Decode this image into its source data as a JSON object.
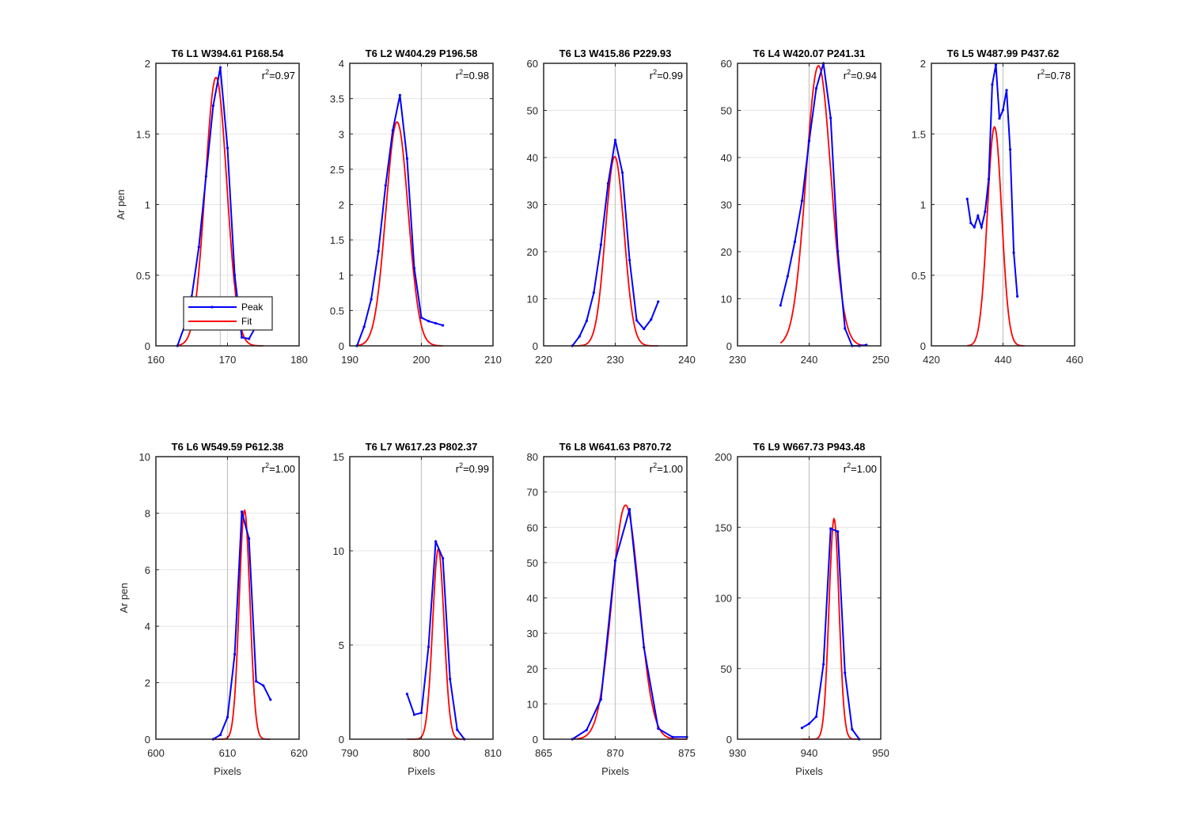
{
  "figure": {
    "ylabel": "Ar pen",
    "xlabel": "Pixels",
    "legend": {
      "entries": [
        "Peak",
        "Fit"
      ],
      "placement": "bottom-left"
    },
    "colors": {
      "peak": "#0000ff",
      "fit": "#ff0000",
      "marker_line": "#c8c8c8",
      "grid": "#e6e6e6"
    }
  },
  "chart_data": [
    {
      "type": "line",
      "title": "T6 L1 W394.61 P168.54",
      "r2_prefix": "r",
      "r2_sup": "2",
      "r2_value": "=0.97",
      "xlim": [
        160,
        180
      ],
      "ylim": [
        0,
        2
      ],
      "xticks": [
        160,
        170,
        180
      ],
      "yticks": [
        0,
        0.5,
        1,
        1.5,
        2
      ],
      "marker_x": 169,
      "peak": {
        "x": [
          163,
          164,
          165,
          166,
          167,
          168,
          169,
          170,
          171,
          172,
          173,
          174
        ],
        "y": [
          0.0,
          0.14,
          0.35,
          0.7,
          1.2,
          1.7,
          1.97,
          1.4,
          0.5,
          0.06,
          0.05,
          0.14
        ]
      },
      "fit": {
        "amplitude": 1.9,
        "center": 168.4,
        "sigma": 1.5,
        "range": [
          163,
          175
        ]
      }
    },
    {
      "type": "line",
      "title": "T6 L2 W404.29 P196.58",
      "r2_prefix": "r",
      "r2_sup": "2",
      "r2_value": "=0.98",
      "xlim": [
        190,
        210
      ],
      "ylim": [
        0,
        4
      ],
      "xticks": [
        190,
        200,
        210
      ],
      "yticks": [
        0,
        0.5,
        1,
        1.5,
        2,
        2.5,
        3,
        3.5,
        4
      ],
      "marker_x": 200,
      "peak": {
        "x": [
          191,
          192,
          193,
          194,
          195,
          196,
          197,
          198,
          199,
          200,
          201,
          202,
          203
        ],
        "y": [
          0.0,
          0.27,
          0.66,
          1.34,
          2.27,
          3.05,
          3.55,
          2.65,
          1.1,
          0.4,
          0.35,
          0.32,
          0.29
        ]
      },
      "fit": {
        "amplitude": 3.17,
        "center": 196.6,
        "sigma": 1.55,
        "range": [
          191,
          203
        ]
      }
    },
    {
      "type": "line",
      "title": "T6 L3 W415.86 P229.93",
      "r2_prefix": "r",
      "r2_sup": "2",
      "r2_value": "=0.99",
      "xlim": [
        220,
        240
      ],
      "ylim": [
        0,
        60
      ],
      "xticks": [
        220,
        230,
        240
      ],
      "yticks": [
        0,
        10,
        20,
        30,
        40,
        50,
        60
      ],
      "marker_x": 230,
      "peak": {
        "x": [
          224,
          225,
          226,
          227,
          228,
          229,
          230,
          231,
          232,
          233,
          234,
          235,
          236
        ],
        "y": [
          0.0,
          2.0,
          5.3,
          11.3,
          21.5,
          34.5,
          43.7,
          36.8,
          18.2,
          5.4,
          3.6,
          5.6,
          9.4
        ]
      },
      "fit": {
        "amplitude": 40.2,
        "center": 229.93,
        "sigma": 1.3,
        "range": [
          224,
          236
        ]
      }
    },
    {
      "type": "line",
      "title": "T6 L4 W420.07 P241.31",
      "r2_prefix": "r",
      "r2_sup": "2",
      "r2_value": "=0.94",
      "xlim": [
        230,
        250
      ],
      "ylim": [
        0,
        60
      ],
      "xticks": [
        230,
        240,
        250
      ],
      "yticks": [
        0,
        10,
        20,
        30,
        40,
        50,
        60
      ],
      "marker_x": 240,
      "peak": {
        "x": [
          236,
          237,
          238,
          239,
          240,
          241,
          242,
          243,
          244,
          245,
          246,
          247,
          248
        ],
        "y": [
          8.6,
          14.8,
          22.1,
          30.8,
          43.5,
          54.7,
          60.0,
          48.4,
          20.1,
          3.7,
          0.0,
          0.0,
          0.2
        ]
      },
      "fit": {
        "amplitude": 59.5,
        "center": 241.31,
        "sigma": 1.75,
        "range": [
          236,
          248
        ]
      }
    },
    {
      "type": "line",
      "title": "T6 L5 W487.99 P437.62",
      "r2_prefix": "r",
      "r2_sup": "2",
      "r2_value": "=0.78",
      "xlim": [
        420,
        460
      ],
      "ylim": [
        0,
        2
      ],
      "xticks": [
        420,
        440,
        460
      ],
      "yticks": [
        0,
        0.5,
        1,
        1.5,
        2
      ],
      "marker_x": 440,
      "peak": {
        "x": [
          430,
          431,
          432,
          433,
          434,
          435,
          436,
          437,
          438,
          439,
          440,
          441,
          442,
          443,
          444
        ],
        "y": [
          1.04,
          0.87,
          0.84,
          0.92,
          0.84,
          0.95,
          1.18,
          1.85,
          1.99,
          1.61,
          1.67,
          1.81,
          1.39,
          0.66,
          0.35
        ]
      },
      "fit": {
        "amplitude": 1.55,
        "center": 437.62,
        "sigma": 2.0,
        "range": [
          430,
          446
        ]
      }
    },
    {
      "type": "line",
      "title": "T6 L6 W549.59 P612.38",
      "r2_prefix": "r",
      "r2_sup": "2",
      "r2_value": "=1.00",
      "xlim": [
        600,
        620
      ],
      "ylim": [
        0,
        10
      ],
      "xticks": [
        600,
        610,
        620
      ],
      "yticks": [
        0,
        2,
        4,
        6,
        8,
        10
      ],
      "marker_x": 610,
      "peak": {
        "x": [
          608,
          609,
          610,
          611,
          612,
          613,
          614,
          615,
          616
        ],
        "y": [
          0.0,
          0.15,
          0.78,
          3.0,
          8.05,
          7.1,
          2.05,
          1.9,
          1.4
        ]
      },
      "fit": {
        "amplitude": 8.1,
        "center": 612.38,
        "sigma": 0.75,
        "range": [
          608,
          616
        ]
      }
    },
    {
      "type": "line",
      "title": "T6 L7 W617.23 P802.37",
      "r2_prefix": "r",
      "r2_sup": "2",
      "r2_value": "=0.99",
      "xlim": [
        790,
        810
      ],
      "ylim": [
        0,
        15
      ],
      "xticks": [
        790,
        800,
        810
      ],
      "yticks": [
        0,
        5,
        10,
        15
      ],
      "marker_x": 800,
      "peak": {
        "x": [
          798,
          799,
          800,
          801,
          802,
          803,
          804,
          805,
          806
        ],
        "y": [
          2.4,
          1.3,
          1.4,
          4.9,
          10.5,
          9.6,
          3.2,
          0.5,
          0.0
        ]
      },
      "fit": {
        "amplitude": 10.1,
        "center": 802.37,
        "sigma": 0.8,
        "range": [
          798,
          806
        ]
      }
    },
    {
      "type": "line",
      "title": "T6 L8 W641.63 P870.72",
      "r2_prefix": "r",
      "r2_sup": "2",
      "r2_value": "=1.00",
      "xlim": [
        865,
        875
      ],
      "ylim": [
        0,
        80
      ],
      "xticks": [
        865,
        870,
        875
      ],
      "yticks": [
        0,
        10,
        20,
        30,
        40,
        50,
        60,
        70,
        80
      ],
      "marker_x": 870,
      "peak": {
        "x": [
          867,
          868,
          869,
          870,
          871,
          872,
          873,
          874,
          875
        ],
        "y": [
          0.0,
          2.6,
          11.3,
          50.6,
          65.1,
          26.0,
          3.0,
          0.6,
          0.6
        ]
      },
      "fit": {
        "amplitude": 66.3,
        "center": 870.72,
        "sigma": 0.95,
        "range": [
          867,
          875
        ]
      }
    },
    {
      "type": "line",
      "title": "T6 L9 W667.73 P943.48",
      "r2_prefix": "r",
      "r2_sup": "2",
      "r2_value": "=1.00",
      "xlim": [
        930,
        950
      ],
      "ylim": [
        0,
        200
      ],
      "xticks": [
        930,
        940,
        950
      ],
      "yticks": [
        0,
        50,
        100,
        150,
        200
      ],
      "marker_x": 940,
      "peak": {
        "x": [
          939,
          940,
          941,
          942,
          943,
          944,
          945,
          946,
          947
        ],
        "y": [
          8.0,
          11.0,
          16.0,
          53.0,
          149.0,
          147.0,
          47.0,
          7.0,
          0.0
        ]
      },
      "fit": {
        "amplitude": 156.0,
        "center": 943.48,
        "sigma": 0.7,
        "range": [
          939,
          947
        ]
      }
    }
  ]
}
